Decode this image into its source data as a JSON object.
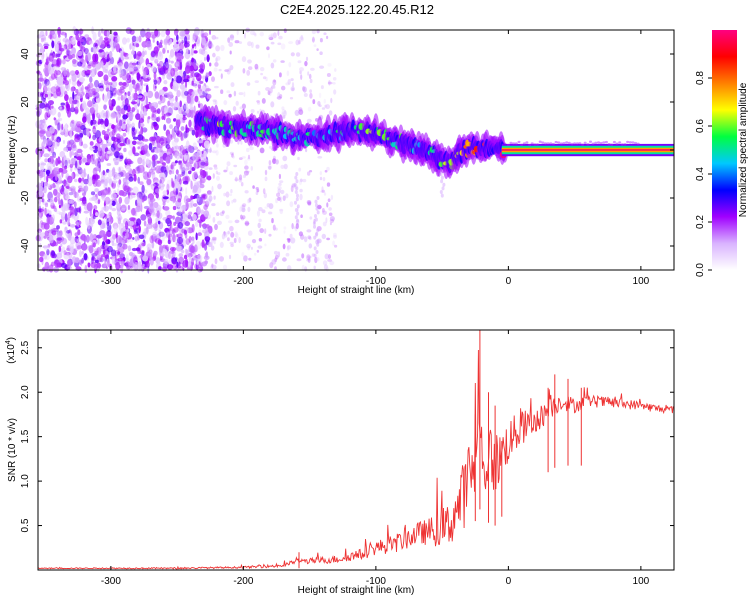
{
  "title": "C2E4.2025.122.20.45.R12",
  "chart_data": [
    {
      "type": "heatmap",
      "xlabel": "Height of straight line (km)",
      "ylabel": "Frequency (Hz)",
      "xlim": [
        -355,
        125
      ],
      "ylim": [
        -50,
        50
      ],
      "x_ticks": [
        -300,
        -200,
        -100,
        0,
        100
      ],
      "y_ticks": [
        -40,
        -20,
        0,
        20,
        40
      ],
      "colorbar": {
        "label": "Normalized spectral amplitude",
        "range": [
          0,
          1
        ],
        "ticks": [
          0.0,
          0.2,
          0.4,
          0.6,
          0.8
        ],
        "tick_labels": [
          "0.0",
          "0.2",
          "0.4",
          "0.6",
          "0.8"
        ],
        "colormap": [
          "#ffffff",
          "#d9b3ff",
          "#a000ff",
          "#0000ff",
          "#00c8ff",
          "#00ff40",
          "#ffff00",
          "#ff8000",
          "#ff0000",
          "#ff0080"
        ]
      },
      "ridge": {
        "x": [
          -235,
          -220,
          -200,
          -180,
          -160,
          -140,
          -120,
          -100,
          -80,
          -60,
          -45,
          -30,
          -10,
          0,
          50,
          125
        ],
        "y": [
          12,
          10,
          9,
          8,
          5,
          6,
          8,
          7,
          3,
          -1,
          -5,
          1,
          1,
          0,
          0,
          0
        ],
        "amplitude": [
          0.4,
          0.5,
          0.45,
          0.45,
          0.4,
          0.4,
          0.45,
          0.5,
          0.45,
          0.4,
          0.5,
          0.7,
          0.8,
          1.0,
          1.0,
          1.0
        ]
      }
    },
    {
      "type": "line",
      "xlabel": "Height of straight line (km)",
      "ylabel": "SNR (10 * v/v)",
      "y_multiplier": "(x10",
      "y_multiplier_exp": "4",
      "y_multiplier_close": ")",
      "xlim": [
        -355,
        125
      ],
      "ylim": [
        0,
        2.7
      ],
      "x_ticks": [
        -300,
        -200,
        -100,
        0,
        100
      ],
      "y_ticks": [
        0.5,
        1.0,
        1.5,
        2.0,
        2.5
      ],
      "y_tick_labels": [
        "0.5",
        "1.0",
        "1.5",
        "2.0",
        "2.5"
      ],
      "color": "#ee3333",
      "envelope": {
        "x": [
          -355,
          -250,
          -200,
          -170,
          -160,
          -150,
          -130,
          -110,
          -100,
          -85,
          -70,
          -55,
          -45,
          -35,
          -28,
          -22,
          -18,
          -10,
          -5,
          0,
          10,
          20,
          30,
          40,
          50,
          60,
          80,
          100,
          110,
          125
        ],
        "y": [
          0.02,
          0.02,
          0.03,
          0.05,
          0.1,
          0.1,
          0.12,
          0.18,
          0.25,
          0.3,
          0.4,
          0.45,
          0.5,
          0.8,
          1.1,
          1.4,
          1.25,
          1.2,
          1.3,
          1.45,
          1.6,
          1.65,
          1.8,
          1.9,
          1.85,
          1.9,
          1.88,
          1.85,
          1.82,
          1.8
        ]
      },
      "noise": {
        "x": [
          -355,
          -200,
          -170,
          -120,
          -100,
          -60,
          -40,
          -30,
          -20,
          0,
          20,
          40,
          60,
          125
        ],
        "y": [
          0.005,
          0.01,
          0.02,
          0.05,
          0.08,
          0.15,
          0.3,
          0.45,
          0.45,
          0.25,
          0.15,
          0.1,
          0.07,
          0.04
        ]
      },
      "peaks": [
        {
          "x": -21.5,
          "y": 2.7
        },
        {
          "x": -15,
          "y": 2.0
        },
        {
          "x": -10,
          "y": 1.85
        },
        {
          "x": -25,
          "y": 1.75
        },
        {
          "x": -5,
          "y": 1.45
        },
        {
          "x": 30,
          "y": 2.05
        },
        {
          "x": 35,
          "y": 2.2
        },
        {
          "x": 45,
          "y": 2.15
        },
        {
          "x": 55,
          "y": 2.05
        },
        {
          "x": -158,
          "y": 0.2
        }
      ]
    }
  ]
}
